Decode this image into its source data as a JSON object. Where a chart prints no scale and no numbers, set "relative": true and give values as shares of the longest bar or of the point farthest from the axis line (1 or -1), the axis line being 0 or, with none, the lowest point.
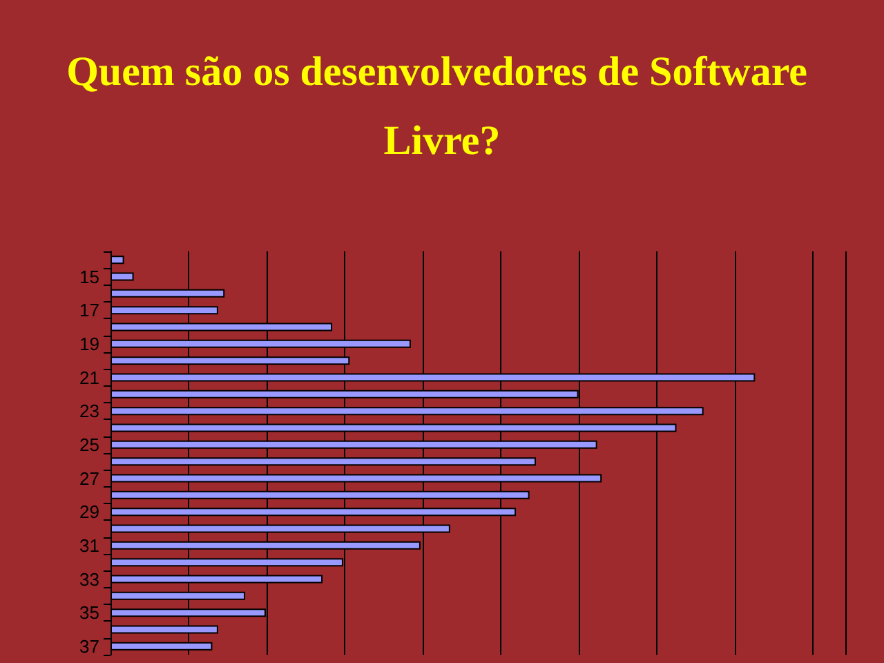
{
  "chart_data": {
    "type": "bar",
    "orientation": "horizontal",
    "relative": true,
    "title": "Quem são os desenvolvedores de Software Livre?",
    "categories": [
      null,
      "15",
      null,
      "17",
      null,
      "19",
      null,
      "21",
      null,
      "23",
      null,
      "25",
      null,
      "27",
      null,
      "29",
      null,
      "31",
      null,
      "33",
      null,
      "35",
      null,
      "37"
    ],
    "values": [
      0.021,
      0.036,
      0.177,
      0.167,
      0.344,
      0.466,
      0.371,
      1,
      0.726,
      0.92,
      0.878,
      0.755,
      0.66,
      0.762,
      0.65,
      0.629,
      0.527,
      0.481,
      0.361,
      0.329,
      0.209,
      0.241,
      0.167,
      0.158
    ],
    "color": "#9999ff",
    "grid": "x"
  }
}
